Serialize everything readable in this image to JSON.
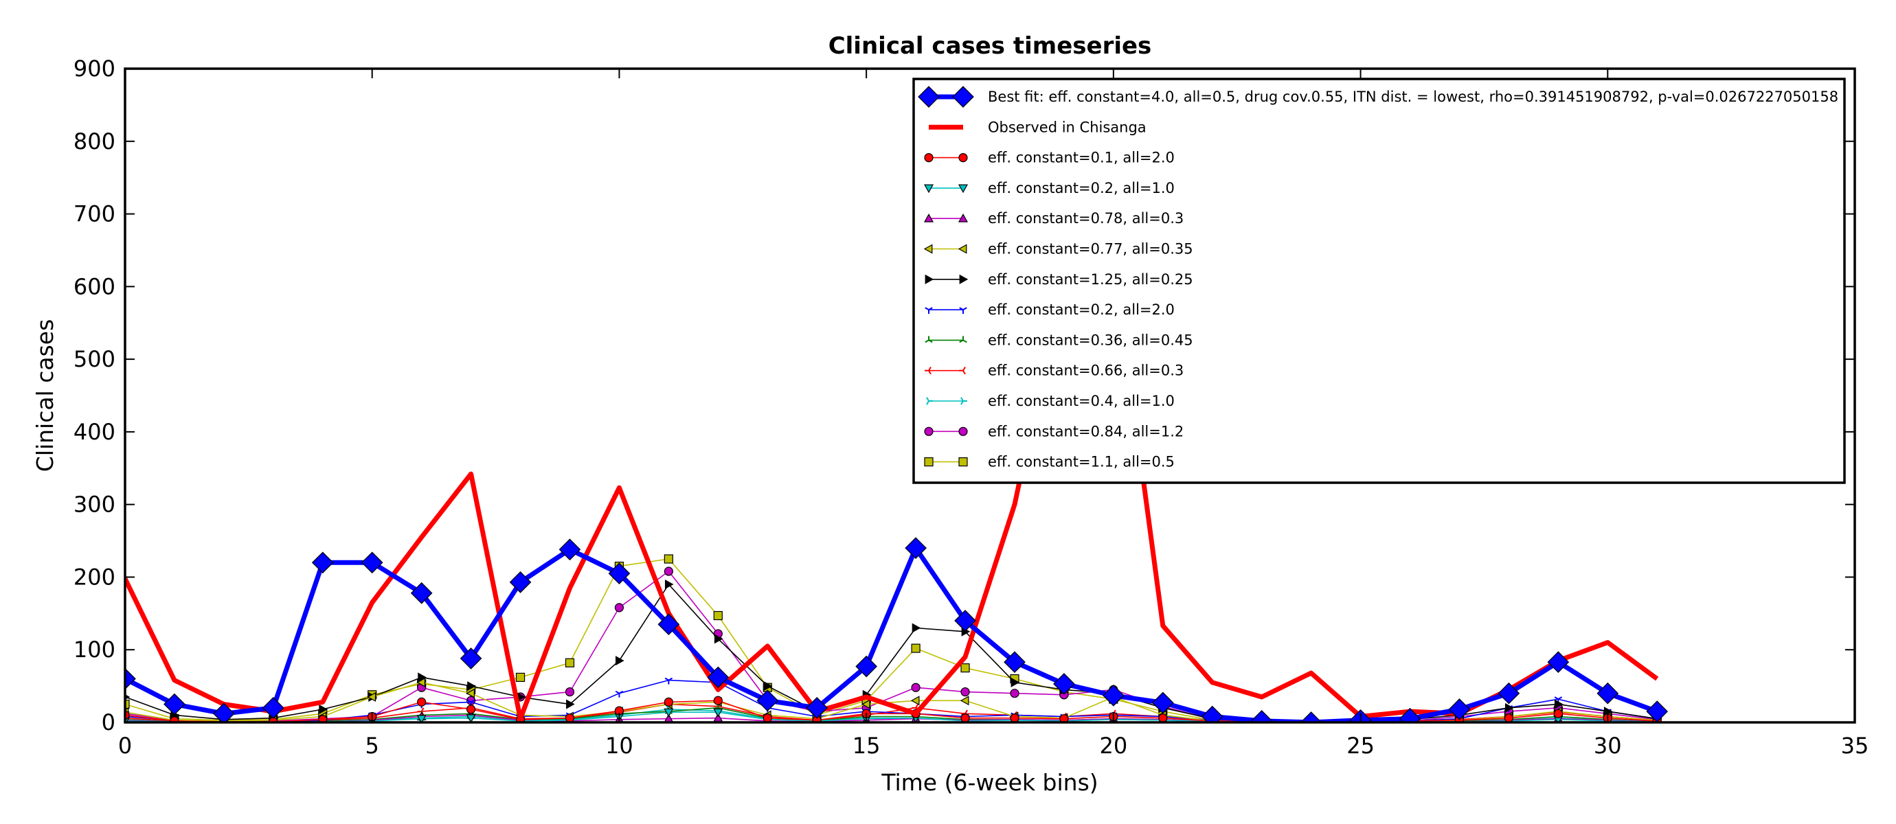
{
  "chart_data": {
    "type": "line",
    "title": "Clinical cases timeseries",
    "xlabel": "Time (6-week bins)",
    "ylabel": "Clinical cases",
    "xlim": [
      0,
      35
    ],
    "ylim": [
      0,
      900
    ],
    "xticks": [
      0,
      5,
      10,
      15,
      20,
      25,
      30,
      35
    ],
    "yticks": [
      0,
      100,
      200,
      300,
      400,
      500,
      600,
      700,
      800,
      900
    ],
    "grid": false,
    "legend_position": "top-right",
    "series": [
      {
        "name": "Best fit: eff. constant=4.0, all=0.5, drug cov.0.55, ITN dist. = lowest, rho=0.391451908792, p-val=0.0267227050158",
        "color": "#0000ff",
        "marker": "diamond",
        "x": [
          0,
          1,
          2,
          3,
          4,
          5,
          6,
          7,
          8,
          9,
          10,
          11,
          12,
          13,
          14,
          15,
          16,
          17,
          18,
          19,
          20,
          21,
          22,
          23,
          24,
          25,
          26,
          27,
          28,
          29,
          30,
          31
        ],
        "y": [
          60,
          25,
          12,
          20,
          220,
          220,
          178,
          88,
          193,
          238,
          205,
          135,
          62,
          30,
          20,
          77,
          240,
          140,
          83,
          53,
          37,
          27,
          8,
          2,
          0,
          3,
          5,
          18,
          40,
          83,
          40,
          15
        ]
      },
      {
        "name": "Observed in Chisanga",
        "color": "#ff0000",
        "marker": "none",
        "x": [
          0,
          1,
          2,
          3,
          4,
          5,
          6,
          7,
          8,
          9,
          10,
          11,
          12,
          13,
          14,
          15,
          16,
          17,
          18,
          19,
          20,
          21,
          22,
          23,
          24,
          25,
          26,
          27,
          28,
          29,
          30,
          31
        ],
        "y": [
          198,
          58,
          25,
          15,
          28,
          165,
          255,
          342,
          5,
          185,
          323,
          150,
          45,
          105,
          15,
          35,
          12,
          90,
          300,
          620,
          640,
          133,
          55,
          35,
          68,
          8,
          15,
          12,
          45,
          85,
          110,
          60
        ]
      },
      {
        "name": "eff. constant=0.1, all=2.0",
        "color": "#ff0000",
        "marker": "circle",
        "x": [
          0,
          1,
          2,
          3,
          4,
          5,
          6,
          7,
          8,
          9,
          10,
          11,
          12,
          13,
          14,
          15,
          16,
          17,
          18,
          19,
          20,
          21,
          22,
          23,
          24,
          25,
          26,
          27,
          28,
          29,
          30,
          31
        ],
        "y": [
          10,
          2,
          1,
          1,
          4,
          8,
          28,
          18,
          4,
          6,
          16,
          28,
          30,
          6,
          3,
          12,
          12,
          6,
          6,
          5,
          8,
          6,
          2,
          1,
          0,
          1,
          2,
          3,
          6,
          12,
          6,
          2
        ]
      },
      {
        "name": "eff. constant=0.2, all=1.0",
        "color": "#00bfbf",
        "marker": "triangle-down",
        "x": [
          0,
          1,
          2,
          3,
          4,
          5,
          6,
          7,
          8,
          9,
          10,
          11,
          12,
          13,
          14,
          15,
          16,
          17,
          18,
          19,
          20,
          21,
          22,
          23,
          24,
          25,
          26,
          27,
          28,
          29,
          30,
          31
        ],
        "y": [
          2,
          1,
          0,
          0,
          1,
          2,
          5,
          6,
          2,
          3,
          8,
          14,
          14,
          4,
          2,
          5,
          6,
          2,
          3,
          2,
          4,
          3,
          1,
          0,
          0,
          0,
          1,
          1,
          2,
          4,
          2,
          1
        ]
      },
      {
        "name": "eff. constant=0.78, all=0.3",
        "color": "#bf00bf",
        "marker": "triangle-up",
        "x": [
          0,
          1,
          2,
          3,
          4,
          5,
          6,
          7,
          8,
          9,
          10,
          11,
          12,
          13,
          14,
          15,
          16,
          17,
          18,
          19,
          20,
          21,
          22,
          23,
          24,
          25,
          26,
          27,
          28,
          29,
          30,
          31
        ],
        "y": [
          3,
          1,
          0,
          0,
          1,
          3,
          8,
          10,
          3,
          2,
          4,
          5,
          6,
          2,
          1,
          3,
          5,
          3,
          4,
          3,
          5,
          4,
          1,
          0,
          0,
          0,
          1,
          1,
          3,
          5,
          3,
          1
        ]
      },
      {
        "name": "eff. constant=0.77, all=0.35",
        "color": "#bfbf00",
        "marker": "triangle-left",
        "x": [
          0,
          1,
          2,
          3,
          4,
          5,
          6,
          7,
          8,
          9,
          10,
          11,
          12,
          13,
          14,
          15,
          16,
          17,
          18,
          19,
          20,
          21,
          22,
          23,
          24,
          25,
          26,
          27,
          28,
          29,
          30,
          31
        ],
        "y": [
          14,
          3,
          2,
          3,
          8,
          35,
          55,
          40,
          10,
          8,
          15,
          25,
          28,
          10,
          5,
          25,
          30,
          30,
          8,
          6,
          35,
          10,
          2,
          1,
          0,
          1,
          2,
          3,
          8,
          15,
          8,
          3
        ]
      },
      {
        "name": "eff. constant=1.25, all=0.25",
        "color": "#000000",
        "marker": "triangle-right",
        "x": [
          0,
          1,
          2,
          3,
          4,
          5,
          6,
          7,
          8,
          9,
          10,
          11,
          12,
          13,
          14,
          15,
          16,
          17,
          18,
          19,
          20,
          21,
          22,
          23,
          24,
          25,
          26,
          27,
          28,
          29,
          30,
          31
        ],
        "y": [
          35,
          10,
          4,
          6,
          18,
          35,
          62,
          50,
          35,
          25,
          85,
          190,
          115,
          50,
          15,
          38,
          130,
          125,
          55,
          45,
          40,
          20,
          5,
          2,
          1,
          2,
          4,
          10,
          20,
          25,
          15,
          5
        ]
      },
      {
        "name": "eff. constant=0.2, all=2.0",
        "color": "#0000ff",
        "marker": "tri-down",
        "x": [
          0,
          1,
          2,
          3,
          4,
          5,
          6,
          7,
          8,
          9,
          10,
          11,
          12,
          13,
          14,
          15,
          16,
          17,
          18,
          19,
          20,
          21,
          22,
          23,
          24,
          25,
          26,
          27,
          28,
          29,
          30,
          31
        ],
        "y": [
          8,
          3,
          1,
          1,
          3,
          10,
          25,
          28,
          8,
          10,
          40,
          58,
          55,
          20,
          8,
          15,
          12,
          8,
          10,
          8,
          10,
          8,
          3,
          1,
          0,
          1,
          2,
          5,
          20,
          32,
          15,
          5
        ]
      },
      {
        "name": "eff. constant=0.36, all=0.45",
        "color": "#008000",
        "marker": "tri-up",
        "x": [
          0,
          1,
          2,
          3,
          4,
          5,
          6,
          7,
          8,
          9,
          10,
          11,
          12,
          13,
          14,
          15,
          16,
          17,
          18,
          19,
          20,
          21,
          22,
          23,
          24,
          25,
          26,
          27,
          28,
          29,
          30,
          31
        ],
        "y": [
          4,
          1,
          0,
          0,
          2,
          4,
          10,
          12,
          4,
          5,
          12,
          15,
          20,
          6,
          2,
          8,
          8,
          4,
          4,
          3,
          5,
          4,
          1,
          0,
          0,
          0,
          1,
          2,
          4,
          8,
          4,
          1
        ]
      },
      {
        "name": "eff. constant=0.66, all=0.3",
        "color": "#ff0000",
        "marker": "tri-left",
        "x": [
          0,
          1,
          2,
          3,
          4,
          5,
          6,
          7,
          8,
          9,
          10,
          11,
          12,
          13,
          14,
          15,
          16,
          17,
          18,
          19,
          20,
          21,
          22,
          23,
          24,
          25,
          26,
          27,
          28,
          29,
          30,
          31
        ],
        "y": [
          6,
          2,
          1,
          1,
          3,
          6,
          15,
          20,
          5,
          6,
          14,
          25,
          22,
          8,
          3,
          10,
          20,
          12,
          10,
          8,
          12,
          8,
          2,
          1,
          0,
          1,
          2,
          4,
          8,
          14,
          8,
          3
        ]
      },
      {
        "name": "eff. constant=0.4, all=1.0",
        "color": "#00bfbf",
        "marker": "tri-right",
        "x": [
          0,
          1,
          2,
          3,
          4,
          5,
          6,
          7,
          8,
          9,
          10,
          11,
          12,
          13,
          14,
          15,
          16,
          17,
          18,
          19,
          20,
          21,
          22,
          23,
          24,
          25,
          26,
          27,
          28,
          29,
          30,
          31
        ],
        "y": [
          3,
          1,
          0,
          0,
          1,
          3,
          6,
          8,
          3,
          4,
          10,
          18,
          16,
          5,
          2,
          6,
          6,
          3,
          3,
          2,
          4,
          3,
          1,
          0,
          0,
          0,
          1,
          1,
          3,
          6,
          3,
          1
        ]
      },
      {
        "name": "eff. constant=0.84, all=1.2",
        "color": "#bf00bf",
        "marker": "circle",
        "x": [
          0,
          1,
          2,
          3,
          4,
          5,
          6,
          7,
          8,
          9,
          10,
          11,
          12,
          13,
          14,
          15,
          16,
          17,
          18,
          19,
          20,
          21,
          22,
          23,
          24,
          25,
          26,
          27,
          28,
          29,
          30,
          31
        ],
        "y": [
          12,
          3,
          1,
          2,
          5,
          8,
          48,
          30,
          35,
          42,
          158,
          208,
          122,
          30,
          15,
          20,
          48,
          42,
          40,
          38,
          45,
          22,
          4,
          1,
          0,
          1,
          2,
          8,
          15,
          20,
          12,
          4
        ]
      },
      {
        "name": "eff. constant=1.1, all=0.5",
        "color": "#bfbf00",
        "marker": "square",
        "x": [
          0,
          1,
          2,
          3,
          4,
          5,
          6,
          7,
          8,
          9,
          10,
          11,
          12,
          13,
          14,
          15,
          16,
          17,
          18,
          19,
          20,
          21,
          22,
          23,
          24,
          25,
          26,
          27,
          28,
          29,
          30,
          31
        ],
        "y": [
          25,
          5,
          3,
          4,
          12,
          38,
          53,
          45,
          62,
          82,
          215,
          225,
          147,
          48,
          10,
          30,
          102,
          75,
          60,
          42,
          32,
          15,
          3,
          1,
          0,
          1,
          2,
          4,
          8,
          15,
          8,
          3
        ]
      }
    ]
  }
}
